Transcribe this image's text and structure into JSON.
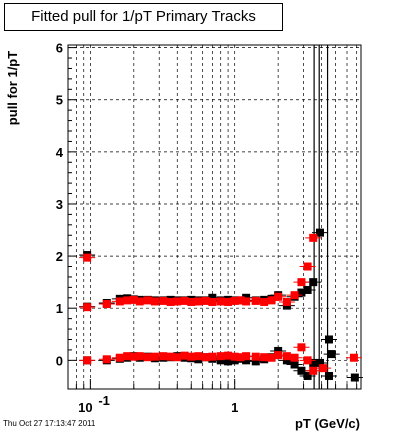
{
  "title": "Fitted pull for 1/pT  Primary Tracks",
  "timestamp": "Thu Oct 27 17:13:47 2011",
  "colors": {
    "black_series": "#000000",
    "red_series": "#ff0000",
    "grid": "#000000",
    "axis": "#000000"
  },
  "chart_data": {
    "type": "scatter",
    "title": "Fitted pull for 1/pT  Primary Tracks",
    "xlabel": "pT (GeV/c)",
    "ylabel": "pull for 1/pT",
    "x_scale": "log",
    "xlim": [
      0.07,
      7.5
    ],
    "ylim": [
      -0.55,
      6.05
    ],
    "grid": true,
    "x_tick_labels": [
      {
        "value": 0.1,
        "base": "10",
        "exp": "-1"
      },
      {
        "value": 1,
        "base": "1",
        "exp": ""
      }
    ],
    "y_ticks": [
      0,
      1,
      2,
      3,
      4,
      5,
      6
    ],
    "series": [
      {
        "color": "#000000",
        "points": [
          [
            0.095,
            2.02
          ],
          [
            0.095,
            1.03
          ],
          [
            0.13,
            1.1
          ],
          [
            0.16,
            1.18
          ],
          [
            0.18,
            1.19
          ],
          [
            0.2,
            1.17
          ],
          [
            0.22,
            1.16
          ],
          [
            0.25,
            1.16
          ],
          [
            0.28,
            1.15
          ],
          [
            0.32,
            1.15
          ],
          [
            0.36,
            1.16
          ],
          [
            0.4,
            1.15
          ],
          [
            0.45,
            1.15
          ],
          [
            0.5,
            1.16
          ],
          [
            0.56,
            1.15
          ],
          [
            0.63,
            1.15
          ],
          [
            0.7,
            1.2
          ],
          [
            0.8,
            1.15
          ],
          [
            0.9,
            1.16
          ],
          [
            1.0,
            1.15
          ],
          [
            1.1,
            1.15
          ],
          [
            1.2,
            1.2
          ],
          [
            1.4,
            1.15
          ],
          [
            1.6,
            1.16
          ],
          [
            1.8,
            1.18
          ],
          [
            2.0,
            1.25
          ],
          [
            2.3,
            1.05
          ],
          [
            2.6,
            1.22
          ],
          [
            2.9,
            1.3
          ],
          [
            3.2,
            1.35
          ],
          [
            3.5,
            1.5
          ],
          [
            3.9,
            2.45
          ],
          [
            4.5,
            0.4
          ],
          [
            4.7,
            0.12
          ],
          [
            0.095,
            0.0
          ],
          [
            0.13,
            0.0
          ],
          [
            0.16,
            0.03
          ],
          [
            0.18,
            0.05
          ],
          [
            0.2,
            0.08
          ],
          [
            0.22,
            0.05
          ],
          [
            0.25,
            0.07
          ],
          [
            0.28,
            0.04
          ],
          [
            0.32,
            0.05
          ],
          [
            0.36,
            0.06
          ],
          [
            0.4,
            0.08
          ],
          [
            0.45,
            0.05
          ],
          [
            0.5,
            0.04
          ],
          [
            0.56,
            0.02
          ],
          [
            0.63,
            0.06
          ],
          [
            0.7,
            0.03
          ],
          [
            0.8,
            0.0
          ],
          [
            0.9,
            -0.02
          ],
          [
            1.0,
            0.0
          ],
          [
            1.1,
            0.03
          ],
          [
            1.2,
            0.0
          ],
          [
            1.4,
            -0.02
          ],
          [
            1.6,
            0.02
          ],
          [
            1.8,
            0.06
          ],
          [
            2.0,
            0.18
          ],
          [
            2.3,
            0.0
          ],
          [
            2.6,
            -0.08
          ],
          [
            2.9,
            -0.2
          ],
          [
            3.2,
            -0.3
          ],
          [
            3.5,
            -0.05
          ],
          [
            3.9,
            -0.05
          ],
          [
            4.5,
            -0.3
          ],
          [
            6.8,
            -0.33
          ]
        ]
      },
      {
        "color": "#ff0000",
        "points": [
          [
            0.095,
            1.97
          ],
          [
            0.095,
            1.02
          ],
          [
            0.13,
            1.08
          ],
          [
            0.16,
            1.13
          ],
          [
            0.18,
            1.15
          ],
          [
            0.2,
            1.16
          ],
          [
            0.22,
            1.13
          ],
          [
            0.25,
            1.15
          ],
          [
            0.28,
            1.13
          ],
          [
            0.32,
            1.14
          ],
          [
            0.36,
            1.12
          ],
          [
            0.4,
            1.13
          ],
          [
            0.45,
            1.14
          ],
          [
            0.5,
            1.12
          ],
          [
            0.56,
            1.13
          ],
          [
            0.63,
            1.14
          ],
          [
            0.7,
            1.12
          ],
          [
            0.8,
            1.13
          ],
          [
            0.9,
            1.12
          ],
          [
            1.0,
            1.14
          ],
          [
            1.1,
            1.15
          ],
          [
            1.2,
            1.13
          ],
          [
            1.4,
            1.14
          ],
          [
            1.6,
            1.12
          ],
          [
            1.8,
            1.15
          ],
          [
            2.0,
            1.22
          ],
          [
            2.3,
            1.12
          ],
          [
            2.6,
            1.25
          ],
          [
            2.9,
            1.5
          ],
          [
            3.2,
            1.8
          ],
          [
            3.5,
            2.35
          ],
          [
            0.095,
            0.0
          ],
          [
            0.13,
            0.02
          ],
          [
            0.16,
            0.05
          ],
          [
            0.18,
            0.08
          ],
          [
            0.2,
            0.07
          ],
          [
            0.22,
            0.08
          ],
          [
            0.25,
            0.06
          ],
          [
            0.28,
            0.07
          ],
          [
            0.32,
            0.08
          ],
          [
            0.36,
            0.07
          ],
          [
            0.4,
            0.06
          ],
          [
            0.45,
            0.09
          ],
          [
            0.5,
            0.07
          ],
          [
            0.56,
            0.08
          ],
          [
            0.63,
            0.06
          ],
          [
            0.7,
            0.07
          ],
          [
            0.8,
            0.08
          ],
          [
            0.9,
            0.09
          ],
          [
            1.0,
            0.07
          ],
          [
            1.1,
            0.06
          ],
          [
            1.2,
            0.08
          ],
          [
            1.4,
            0.07
          ],
          [
            1.6,
            0.06
          ],
          [
            1.8,
            0.05
          ],
          [
            2.0,
            0.1
          ],
          [
            2.3,
            0.08
          ],
          [
            2.6,
            0.05
          ],
          [
            2.9,
            0.25
          ],
          [
            3.2,
            0.0
          ],
          [
            3.5,
            -0.2
          ],
          [
            4.1,
            -0.15
          ],
          [
            6.7,
            0.05
          ]
        ]
      }
    ],
    "vertical_lines": [
      3.55,
      3.85,
      4.4
    ]
  }
}
